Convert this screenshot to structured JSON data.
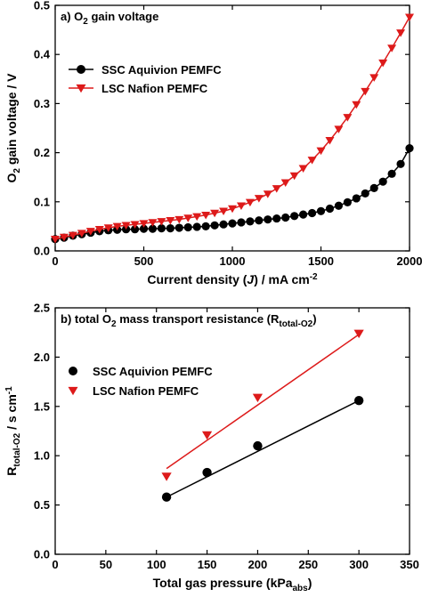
{
  "chart_data": [
    {
      "type": "line",
      "title": {
        "pre": "a) O",
        "sub": "2",
        "post": " gain voltage"
      },
      "xlabel": {
        "pre": "Current density (",
        "italic": "J",
        "post": ") / mA cm",
        "sup": "-2"
      },
      "ylabel": {
        "pre": "O",
        "sub": "2",
        "post": " gain voltage / V"
      },
      "xlim": [
        0,
        2000
      ],
      "ylim": [
        0,
        0.5
      ],
      "xticks": [
        "0",
        "500",
        "1000",
        "1500",
        "2000"
      ],
      "yticks": [
        "0.0",
        "0.1",
        "0.2",
        "0.3",
        "0.4",
        "0.5"
      ],
      "legend_position": "upper-left",
      "series": [
        {
          "name": "SSC Aquivion PEMFC",
          "color": "#000000",
          "marker": "circle",
          "x": [
            0,
            50,
            100,
            150,
            200,
            250,
            300,
            350,
            400,
            450,
            500,
            550,
            600,
            650,
            700,
            750,
            800,
            850,
            900,
            950,
            1000,
            1050,
            1100,
            1150,
            1200,
            1250,
            1300,
            1350,
            1400,
            1450,
            1500,
            1550,
            1600,
            1650,
            1700,
            1750,
            1800,
            1850,
            1900,
            1950,
            2000
          ],
          "y": [
            0.024,
            0.027,
            0.031,
            0.034,
            0.037,
            0.04,
            0.042,
            0.043,
            0.044,
            0.044,
            0.045,
            0.045,
            0.046,
            0.046,
            0.047,
            0.048,
            0.049,
            0.05,
            0.052,
            0.054,
            0.056,
            0.058,
            0.06,
            0.062,
            0.064,
            0.066,
            0.068,
            0.071,
            0.074,
            0.077,
            0.081,
            0.086,
            0.092,
            0.099,
            0.107,
            0.117,
            0.128,
            0.141,
            0.157,
            0.177,
            0.209
          ]
        },
        {
          "name": "LSC Nafion PEMFC",
          "color": "#dd1a1a",
          "marker": "triangle-down",
          "x": [
            0,
            50,
            100,
            150,
            200,
            250,
            300,
            350,
            400,
            450,
            500,
            550,
            600,
            650,
            700,
            750,
            800,
            850,
            900,
            950,
            1000,
            1050,
            1100,
            1150,
            1200,
            1250,
            1300,
            1350,
            1400,
            1450,
            1500,
            1550,
            1600,
            1650,
            1700,
            1750,
            1800,
            1850,
            1900,
            1950,
            2000
          ],
          "y": [
            0.024,
            0.028,
            0.032,
            0.036,
            0.04,
            0.044,
            0.047,
            0.05,
            0.052,
            0.054,
            0.056,
            0.058,
            0.06,
            0.062,
            0.064,
            0.067,
            0.07,
            0.073,
            0.077,
            0.081,
            0.086,
            0.092,
            0.099,
            0.107,
            0.116,
            0.127,
            0.139,
            0.153,
            0.168,
            0.185,
            0.204,
            0.225,
            0.248,
            0.272,
            0.298,
            0.325,
            0.353,
            0.383,
            0.413,
            0.444,
            0.476
          ]
        }
      ]
    },
    {
      "type": "scatter",
      "title": {
        "pre": "b) total O",
        "sub": "2",
        "mid": " mass transport resistance (R",
        "sub2": "total-O",
        "sub3": "2",
        "post": ")"
      },
      "xlabel": {
        "pre": "Total gas pressure (kPa",
        "sub": "abs",
        "post": ")"
      },
      "ylabel": {
        "pre": "R",
        "sub": "total-O",
        "sub2": "2",
        "post": " / s cm",
        "sup": "-1"
      },
      "xlim": [
        0,
        350
      ],
      "ylim": [
        0,
        2.5
      ],
      "xticks": [
        "0",
        "50",
        "100",
        "150",
        "200",
        "250",
        "300",
        "350"
      ],
      "yticks": [
        "0.0",
        "0.5",
        "1.0",
        "1.5",
        "2.0",
        "2.5"
      ],
      "legend_position": "upper-left",
      "series": [
        {
          "name": "SSC Aquivion PEMFC",
          "color": "#000000",
          "marker": "circle",
          "x": [
            110,
            150,
            200,
            300
          ],
          "y": [
            0.58,
            0.83,
            1.1,
            1.56
          ],
          "fit_line": {
            "x": [
              110,
              300
            ],
            "y": [
              0.58,
              1.56
            ]
          }
        },
        {
          "name": "LSC Nafion PEMFC",
          "color": "#dd1a1a",
          "marker": "triangle-down",
          "x": [
            110,
            150,
            200,
            300
          ],
          "y": [
            0.79,
            1.21,
            1.59,
            2.24
          ],
          "fit_line": {
            "x": [
              110,
              300
            ],
            "y": [
              0.87,
              2.23
            ]
          }
        }
      ]
    }
  ]
}
